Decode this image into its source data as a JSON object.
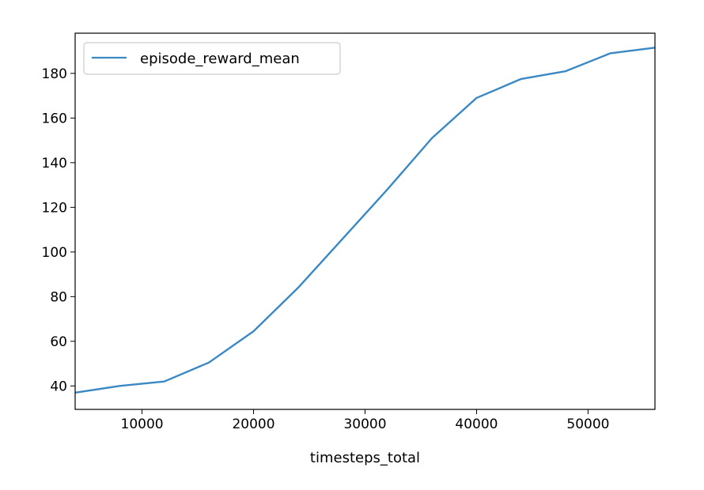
{
  "chart_data": {
    "type": "line",
    "title": "",
    "xlabel": "timesteps_total",
    "ylabel": "",
    "xlim": [
      4000,
      56000
    ],
    "ylim": [
      29.5,
      198
    ],
    "xticks": [
      10000,
      20000,
      30000,
      40000,
      50000
    ],
    "yticks": [
      40,
      60,
      80,
      100,
      120,
      140,
      160,
      180
    ],
    "grid": false,
    "legend": "top-left",
    "series": [
      {
        "name": "episode_reward_mean",
        "color": "#3a88c4",
        "x": [
          4000,
          8000,
          12000,
          16000,
          20000,
          24000,
          28000,
          32000,
          36000,
          40000,
          44000,
          48000,
          52000,
          56000
        ],
        "y": [
          37,
          40,
          42,
          50.5,
          64.5,
          84,
          106,
          128,
          151,
          169,
          177.5,
          181,
          189,
          191.5
        ]
      }
    ]
  }
}
